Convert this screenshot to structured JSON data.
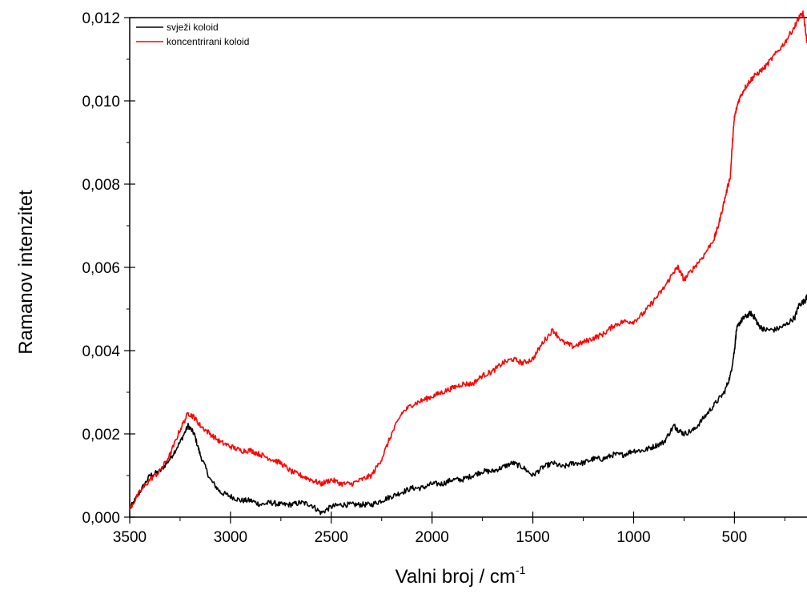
{
  "chart_data": {
    "type": "line",
    "title": "",
    "xlabel": "Valni broj / cm",
    "xlabel_superscript": "-1",
    "ylabel": "Ramanov intenzitet",
    "xlim": [
      3500,
      140
    ],
    "ylim": [
      0.0,
      0.012
    ],
    "x_reversed": true,
    "grid": false,
    "legend_position": "top-left",
    "xticks": [
      {
        "value": 3500,
        "label": "3500"
      },
      {
        "value": 3000,
        "label": "3000"
      },
      {
        "value": 2500,
        "label": "2500"
      },
      {
        "value": 2000,
        "label": "2000"
      },
      {
        "value": 1500,
        "label": "1500"
      },
      {
        "value": 1000,
        "label": "1000"
      },
      {
        "value": 500,
        "label": "500"
      }
    ],
    "yticks": [
      {
        "value": 0.0,
        "label": "0,000"
      },
      {
        "value": 0.002,
        "label": "0,002"
      },
      {
        "value": 0.004,
        "label": "0,004"
      },
      {
        "value": 0.006,
        "label": "0,006"
      },
      {
        "value": 0.008,
        "label": "0,008"
      },
      {
        "value": 0.01,
        "label": "0,010"
      },
      {
        "value": 0.012,
        "label": "0,012"
      }
    ],
    "series": [
      {
        "name": "svježi koloid",
        "color": "#000000",
        "x": [
          3500,
          3450,
          3400,
          3350,
          3300,
          3250,
          3210,
          3180,
          3150,
          3100,
          3050,
          3000,
          2950,
          2900,
          2850,
          2800,
          2750,
          2700,
          2650,
          2600,
          2550,
          2500,
          2450,
          2400,
          2350,
          2300,
          2250,
          2200,
          2150,
          2100,
          2050,
          2000,
          1950,
          1900,
          1850,
          1800,
          1750,
          1700,
          1650,
          1600,
          1550,
          1500,
          1450,
          1400,
          1350,
          1300,
          1250,
          1200,
          1150,
          1100,
          1050,
          1000,
          950,
          900,
          850,
          800,
          780,
          750,
          700,
          650,
          600,
          550,
          520,
          500,
          490,
          470,
          450,
          420,
          400,
          380,
          350,
          300,
          250,
          200,
          180,
          150,
          140
        ],
        "y": [
          0.0002,
          0.0006,
          0.001,
          0.0011,
          0.0014,
          0.0018,
          0.0022,
          0.002,
          0.0015,
          0.0009,
          0.0006,
          0.0005,
          0.0004,
          0.0004,
          0.0003,
          0.00035,
          0.0003,
          0.0003,
          0.00035,
          0.0003,
          0.0001,
          0.00025,
          0.0003,
          0.0003,
          0.0003,
          0.0003,
          0.0004,
          0.0005,
          0.0006,
          0.0007,
          0.0007,
          0.0008,
          0.0008,
          0.0009,
          0.0009,
          0.001,
          0.0011,
          0.0011,
          0.0012,
          0.0013,
          0.0012,
          0.001,
          0.0012,
          0.0013,
          0.0012,
          0.0013,
          0.0013,
          0.0014,
          0.0014,
          0.0015,
          0.0015,
          0.0016,
          0.0016,
          0.0017,
          0.0018,
          0.0022,
          0.0021,
          0.002,
          0.0021,
          0.0024,
          0.0027,
          0.003,
          0.0034,
          0.004,
          0.0045,
          0.0047,
          0.0048,
          0.0049,
          0.0048,
          0.0046,
          0.0045,
          0.0045,
          0.0046,
          0.0048,
          0.0051,
          0.0052,
          0.0053
        ]
      },
      {
        "name": "koncentrirani koloid",
        "color": "#ff0000",
        "x": [
          3500,
          3450,
          3400,
          3350,
          3300,
          3250,
          3210,
          3180,
          3150,
          3100,
          3050,
          3000,
          2950,
          2900,
          2850,
          2800,
          2750,
          2700,
          2650,
          2600,
          2550,
          2500,
          2450,
          2400,
          2350,
          2300,
          2250,
          2200,
          2150,
          2100,
          2050,
          2000,
          1950,
          1900,
          1850,
          1800,
          1750,
          1700,
          1650,
          1600,
          1550,
          1500,
          1450,
          1400,
          1350,
          1300,
          1250,
          1200,
          1150,
          1100,
          1050,
          1000,
          950,
          900,
          850,
          800,
          780,
          750,
          700,
          650,
          600,
          580,
          550,
          520,
          510,
          500,
          480,
          450,
          420,
          400,
          350,
          300,
          250,
          200,
          180,
          160,
          150,
          140
        ],
        "y": [
          0.0002,
          0.0006,
          0.0009,
          0.0011,
          0.0015,
          0.0021,
          0.0025,
          0.0024,
          0.0022,
          0.002,
          0.0018,
          0.0017,
          0.0016,
          0.0016,
          0.0015,
          0.0014,
          0.0013,
          0.0011,
          0.001,
          0.0009,
          0.0008,
          0.0009,
          0.0008,
          0.0008,
          0.0009,
          0.001,
          0.0014,
          0.002,
          0.0025,
          0.0027,
          0.0028,
          0.0029,
          0.003,
          0.0031,
          0.0032,
          0.0032,
          0.0034,
          0.0035,
          0.0037,
          0.0038,
          0.0037,
          0.0038,
          0.0042,
          0.0045,
          0.0042,
          0.0041,
          0.0042,
          0.0043,
          0.0044,
          0.0046,
          0.0047,
          0.0047,
          0.0049,
          0.0052,
          0.0055,
          0.0059,
          0.006,
          0.0057,
          0.006,
          0.0063,
          0.0067,
          0.007,
          0.0076,
          0.0082,
          0.009,
          0.0096,
          0.01,
          0.0103,
          0.0105,
          0.0106,
          0.0108,
          0.0111,
          0.0114,
          0.0118,
          0.012,
          0.0121,
          0.0118,
          0.0114
        ]
      }
    ]
  }
}
